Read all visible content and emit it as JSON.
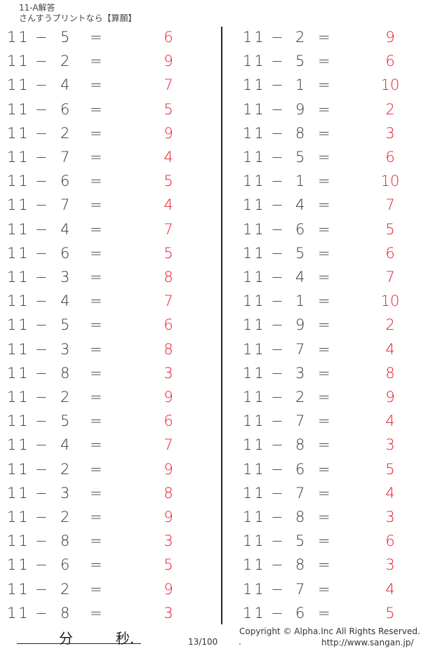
{
  "header": {
    "title": "11-A解答",
    "subtitle": "さんすうプリントなら【算願】"
  },
  "minuend": "11",
  "operator": "−",
  "equals": "=",
  "colors": {
    "answer": "#e8192c",
    "text": "#333333"
  },
  "left_column": {
    "subtrahends": [
      "5",
      "2",
      "4",
      "6",
      "2",
      "7",
      "6",
      "7",
      "4",
      "6",
      "3",
      "4",
      "5",
      "3",
      "8",
      "2",
      "5",
      "4",
      "2",
      "3",
      "2",
      "8",
      "6",
      "2",
      "8"
    ],
    "answers": [
      "6",
      "9",
      "7",
      "5",
      "9",
      "4",
      "5",
      "4",
      "7",
      "5",
      "8",
      "7",
      "6",
      "8",
      "3",
      "9",
      "6",
      "7",
      "9",
      "8",
      "9",
      "3",
      "5",
      "9",
      "3"
    ]
  },
  "right_column": {
    "subtrahends": [
      "2",
      "5",
      "1",
      "9",
      "8",
      "5",
      "1",
      "4",
      "6",
      "5",
      "4",
      "1",
      "9",
      "7",
      "3",
      "2",
      "7",
      "8",
      "6",
      "7",
      "8",
      "5",
      "8",
      "7",
      "6"
    ],
    "answers": [
      "9",
      "6",
      "10",
      "2",
      "3",
      "6",
      "10",
      "7",
      "5",
      "6",
      "7",
      "10",
      "2",
      "4",
      "8",
      "9",
      "4",
      "3",
      "5",
      "4",
      "3",
      "6",
      "3",
      "4",
      "5"
    ]
  },
  "footer": {
    "minutes_label": "分",
    "seconds_label": "秒.",
    "page": "13/100",
    "copyright": "Copyright ©  Alpha.Inc All Rights Reserved.",
    "dot": ".",
    "url": "http://www.sangan.jp/"
  }
}
